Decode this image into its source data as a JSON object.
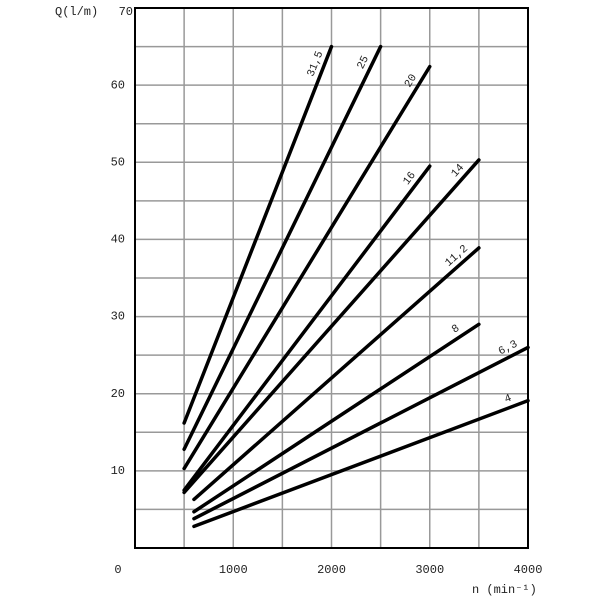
{
  "chart_data": {
    "type": "line",
    "y_label": "Q(l/m)",
    "x_label": "n (min⁻¹)",
    "xlim": [
      0,
      4000
    ],
    "ylim": [
      0,
      70
    ],
    "xticks": [
      0,
      1000,
      2000,
      3000,
      4000
    ],
    "yticks": [
      10,
      20,
      30,
      40,
      50,
      60,
      70
    ],
    "xminor": [
      500,
      1500,
      2500,
      3500
    ],
    "yminor": [
      5,
      15,
      25,
      35,
      45,
      55,
      65
    ],
    "grid": true,
    "color": "#000000",
    "series": [
      {
        "name": "31,5",
        "x": [
          500,
          2000
        ],
        "values": [
          16.2,
          65
        ]
      },
      {
        "name": "25",
        "x": [
          500,
          2500
        ],
        "values": [
          12.8,
          65
        ]
      },
      {
        "name": "20",
        "x": [
          500,
          3000
        ],
        "values": [
          10.3,
          62.4
        ]
      },
      {
        "name": "16",
        "x": [
          500,
          3000
        ],
        "values": [
          7.5,
          49.5
        ]
      },
      {
        "name": "14",
        "x": [
          500,
          3500
        ],
        "values": [
          7.2,
          50.3
        ]
      },
      {
        "name": "11,2",
        "x": [
          600,
          3500
        ],
        "values": [
          6.3,
          38.9
        ]
      },
      {
        "name": "8",
        "x": [
          600,
          3500
        ],
        "values": [
          4.7,
          29
        ]
      },
      {
        "name": "6,3",
        "x": [
          600,
          4000
        ],
        "values": [
          3.8,
          26
        ]
      },
      {
        "name": "4",
        "x": [
          600,
          4000
        ],
        "values": [
          2.8,
          19.1
        ]
      }
    ]
  }
}
